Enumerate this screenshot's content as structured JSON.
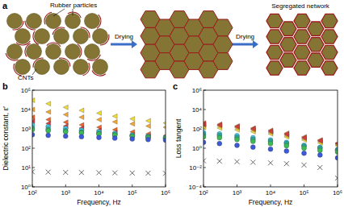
{
  "diagram": {
    "panel_label": "a",
    "rubber_label": "Rubber particles",
    "cnt_label": "CNTs",
    "arrows": [
      "Drying",
      "Drying"
    ],
    "result_label": "Segregated network"
  },
  "chart_data": [
    {
      "type": "scatter",
      "title": "b",
      "x_label": "Frequency, Hz",
      "y_label": "Dielectric constant, ε′",
      "log": true,
      "grid": false,
      "x": [
        100,
        300,
        1000,
        3000,
        10000,
        30000,
        100000,
        300000,
        1000000
      ],
      "xlim": [
        100,
        1000000
      ],
      "xticks": [
        {
          "value": 100,
          "label": "10²"
        },
        {
          "value": 1000,
          "label": "10³"
        },
        {
          "value": 10000,
          "label": "10⁴"
        },
        {
          "value": 100000,
          "label": "10⁵"
        },
        {
          "value": 1000000,
          "label": "10⁶"
        }
      ],
      "ylim": [
        1,
        100000
      ],
      "yticks": [
        {
          "value": 1,
          "label": "10⁰"
        },
        {
          "value": 10,
          "label": "10¹"
        },
        {
          "value": 100,
          "label": "10²"
        },
        {
          "value": 1000,
          "label": "10³"
        },
        {
          "value": 10000,
          "label": "10⁴"
        },
        {
          "value": 100000,
          "label": "10⁵"
        }
      ],
      "series": [
        {
          "color": "#f2dc2e",
          "marker": "triangle",
          "values": [
            30000,
            20000,
            13000,
            9000,
            6500,
            4500,
            3300,
            2600,
            2000
          ]
        },
        {
          "color": "#f5a530",
          "marker": "triangle",
          "values": [
            10000,
            7500,
            5500,
            4000,
            3000,
            2300,
            1800,
            1400,
            1200
          ]
        },
        {
          "color": "#ee6428",
          "marker": "triangle",
          "values": [
            4000,
            3000,
            2200,
            1600,
            1200,
            900,
            700,
            550,
            450
          ]
        },
        {
          "color": "#d83a3a",
          "marker": "triangle",
          "values": [
            2500,
            1900,
            1400,
            1100,
            850,
            650,
            500,
            420,
            360
          ]
        },
        {
          "color": "#3ec6e0",
          "marker": "circle",
          "values": [
            1600,
            1300,
            1050,
            850,
            700,
            580,
            480,
            410,
            350
          ]
        },
        {
          "color": "#2aa89a",
          "marker": "circle",
          "values": [
            1100,
            950,
            800,
            680,
            580,
            500,
            430,
            380,
            330
          ]
        },
        {
          "color": "#3cba54",
          "marker": "circle",
          "values": [
            900,
            800,
            700,
            620,
            540,
            470,
            410,
            360,
            320
          ]
        },
        {
          "color": "#3a5ad8",
          "marker": "circle",
          "values": [
            500,
            460,
            420,
            390,
            360,
            330,
            300,
            280,
            260
          ]
        },
        {
          "color": "#555555",
          "marker": "x",
          "values": [
            6,
            5.8,
            5.6,
            5.5,
            5.4,
            5.3,
            5.2,
            5.1,
            5
          ]
        }
      ]
    },
    {
      "type": "scatter",
      "title": "c",
      "x_label": "Frequency, Hz",
      "y_label": "Loss tangent",
      "log": true,
      "grid": false,
      "x": [
        100,
        300,
        1000,
        3000,
        10000,
        30000,
        100000,
        300000,
        1000000
      ],
      "xlim": [
        100,
        1000000
      ],
      "xticks": [
        {
          "value": 100,
          "label": "10²"
        },
        {
          "value": 1000,
          "label": "10³"
        },
        {
          "value": 10000,
          "label": "10⁴"
        },
        {
          "value": 100000,
          "label": "10⁵"
        },
        {
          "value": 1000000,
          "label": "10⁶"
        }
      ],
      "ylim": [
        0.0001,
        1000000
      ],
      "yticks": [
        {
          "value": 0.0001,
          "label": "10⁻⁴"
        },
        {
          "value": 0.01,
          "label": "10⁻²"
        },
        {
          "value": 1,
          "label": "10⁰"
        },
        {
          "value": 100,
          "label": "10²"
        },
        {
          "value": 10000,
          "label": "10⁴"
        },
        {
          "value": 1000000,
          "label": "10⁶"
        }
      ],
      "series": [
        {
          "color": "#f2dc2e",
          "marker": "triangle",
          "values": [
            150,
            120,
            80,
            50,
            30,
            15,
            7,
            3.5,
            1.8
          ]
        },
        {
          "color": "#f5a530",
          "marker": "triangle",
          "values": [
            250,
            200,
            130,
            80,
            45,
            22,
            10,
            5,
            2.5
          ]
        },
        {
          "color": "#ee6428",
          "marker": "triangle",
          "values": [
            400,
            300,
            200,
            120,
            70,
            35,
            15,
            7,
            3.5
          ]
        },
        {
          "color": "#d83a3a",
          "marker": "triangle",
          "values": [
            300,
            250,
            170,
            100,
            55,
            28,
            12,
            6,
            3
          ]
        },
        {
          "color": "#3ec6e0",
          "marker": "circle",
          "values": [
            40,
            30,
            20,
            12,
            7,
            4,
            2,
            1.2,
            0.7
          ]
        },
        {
          "color": "#2aa89a",
          "marker": "circle",
          "values": [
            25,
            20,
            13,
            8,
            5,
            3,
            1.6,
            1,
            0.6
          ]
        },
        {
          "color": "#3cba54",
          "marker": "circle",
          "values": [
            15,
            12,
            8,
            5,
            3,
            1.8,
            1,
            0.6,
            0.4
          ]
        },
        {
          "color": "#3a5ad8",
          "marker": "circle",
          "values": [
            4,
            3,
            2,
            1.3,
            0.8,
            0.5,
            0.3,
            0.2,
            0.1
          ]
        },
        {
          "color": "#555555",
          "marker": "x",
          "values": [
            0.05,
            0.045,
            0.04,
            0.035,
            0.03,
            0.025,
            0.018,
            0.01,
            0.0008
          ]
        }
      ]
    }
  ]
}
